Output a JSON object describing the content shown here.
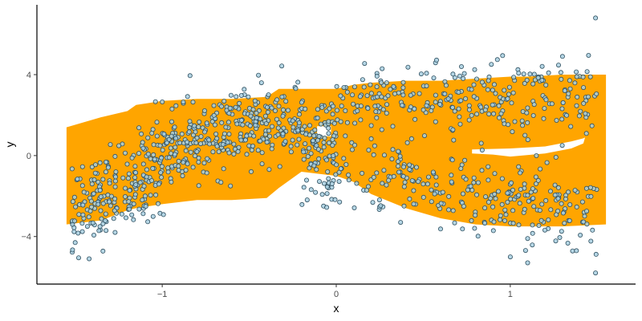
{
  "chart_data": {
    "type": "scatter",
    "title": "",
    "xlabel": "x",
    "ylabel": "y",
    "xlim": [
      -1.72,
      1.72
    ],
    "ylim": [
      -6.35,
      7.45
    ],
    "x_ticks": [
      -1,
      0,
      1
    ],
    "x_tick_labels": [
      "−1",
      "0",
      "1"
    ],
    "y_ticks": [
      -4,
      0,
      4
    ],
    "y_tick_labels": [
      "−4",
      "0",
      "4"
    ],
    "grid": false,
    "legend": "none",
    "colors": {
      "band": "#ffa500",
      "point_fill": "#a8cfe0",
      "point_stroke": "#2f4f5f",
      "axis": "#000000"
    },
    "band": {
      "x": [
        -1.55,
        -1.35,
        -1.2,
        -1.15,
        -1.0,
        -0.8,
        -0.6,
        -0.4,
        -0.33,
        -0.2,
        -0.1,
        0.0,
        0.1,
        0.2,
        0.4,
        0.6,
        0.8,
        1.0,
        1.1,
        1.3,
        1.55
      ],
      "upper": [
        1.4,
        1.9,
        2.2,
        2.5,
        2.7,
        2.8,
        2.8,
        2.9,
        3.3,
        3.3,
        3.3,
        3.3,
        3.5,
        3.6,
        3.7,
        3.7,
        3.8,
        3.9,
        3.9,
        4.0,
        4.0
      ],
      "lower": [
        -3.4,
        -3.2,
        -2.7,
        -2.6,
        -2.4,
        -2.2,
        -2.2,
        -2.1,
        -1.6,
        -0.8,
        -0.9,
        -1.0,
        -1.3,
        -1.9,
        -2.6,
        -3.1,
        -3.4,
        -3.5,
        -3.5,
        -3.5,
        -3.4
      ]
    },
    "holes": [
      {
        "x": [
          -0.11,
          -0.03,
          -0.03,
          -0.11
        ],
        "y": [
          1.45,
          1.45,
          0.95,
          0.95
        ]
      },
      {
        "x": [
          0.78,
          1.0,
          1.2,
          1.35,
          1.42,
          1.43,
          1.42,
          1.35,
          1.2,
          1.0,
          0.9,
          0.78
        ],
        "y": [
          0.3,
          0.35,
          0.45,
          0.7,
          0.85,
          0.9,
          0.6,
          0.35,
          0.1,
          -0.05,
          0.05,
          0.1
        ]
      }
    ],
    "series": [
      {
        "segments": [
          {
            "x0": -1.52,
            "x1": -1.0,
            "y0": -3.0,
            "y1": -0.3,
            "n": 210,
            "sd": 1.1
          },
          {
            "x0": -1.0,
            "x1": -0.35,
            "y0": 0.2,
            "y1": 1.7,
            "n": 260,
            "sd": 0.9
          },
          {
            "x0": -0.35,
            "x1": 0.0,
            "y0": 1.4,
            "y1": 1.0,
            "n": 120,
            "sd": 1.0
          },
          {
            "x0": -0.2,
            "x1": 1.5,
            "y0": -0.6,
            "y1": -2.8,
            "n": 300,
            "sd": 1.0
          },
          {
            "x0": 0.0,
            "x1": 1.5,
            "y0": 2.6,
            "y1": 2.9,
            "n": 260,
            "sd": 0.9
          }
        ],
        "points": [
          {
            "x": 1.49,
            "y": 6.8
          },
          {
            "x": -0.84,
            "y": 3.95
          },
          {
            "x": 1.49,
            "y": -5.8
          },
          {
            "x": -1.48,
            "y": -5.05
          },
          {
            "x": -1.42,
            "y": -5.1
          },
          {
            "x": 1.3,
            "y": 4.9
          },
          {
            "x": 1.45,
            "y": 4.95
          },
          {
            "x": -0.43,
            "y": 3.6
          },
          {
            "x": 1.1,
            "y": -5.3
          },
          {
            "x": 1.38,
            "y": -4.7
          },
          {
            "x": -1.5,
            "y": -4.3
          }
        ]
      }
    ]
  }
}
